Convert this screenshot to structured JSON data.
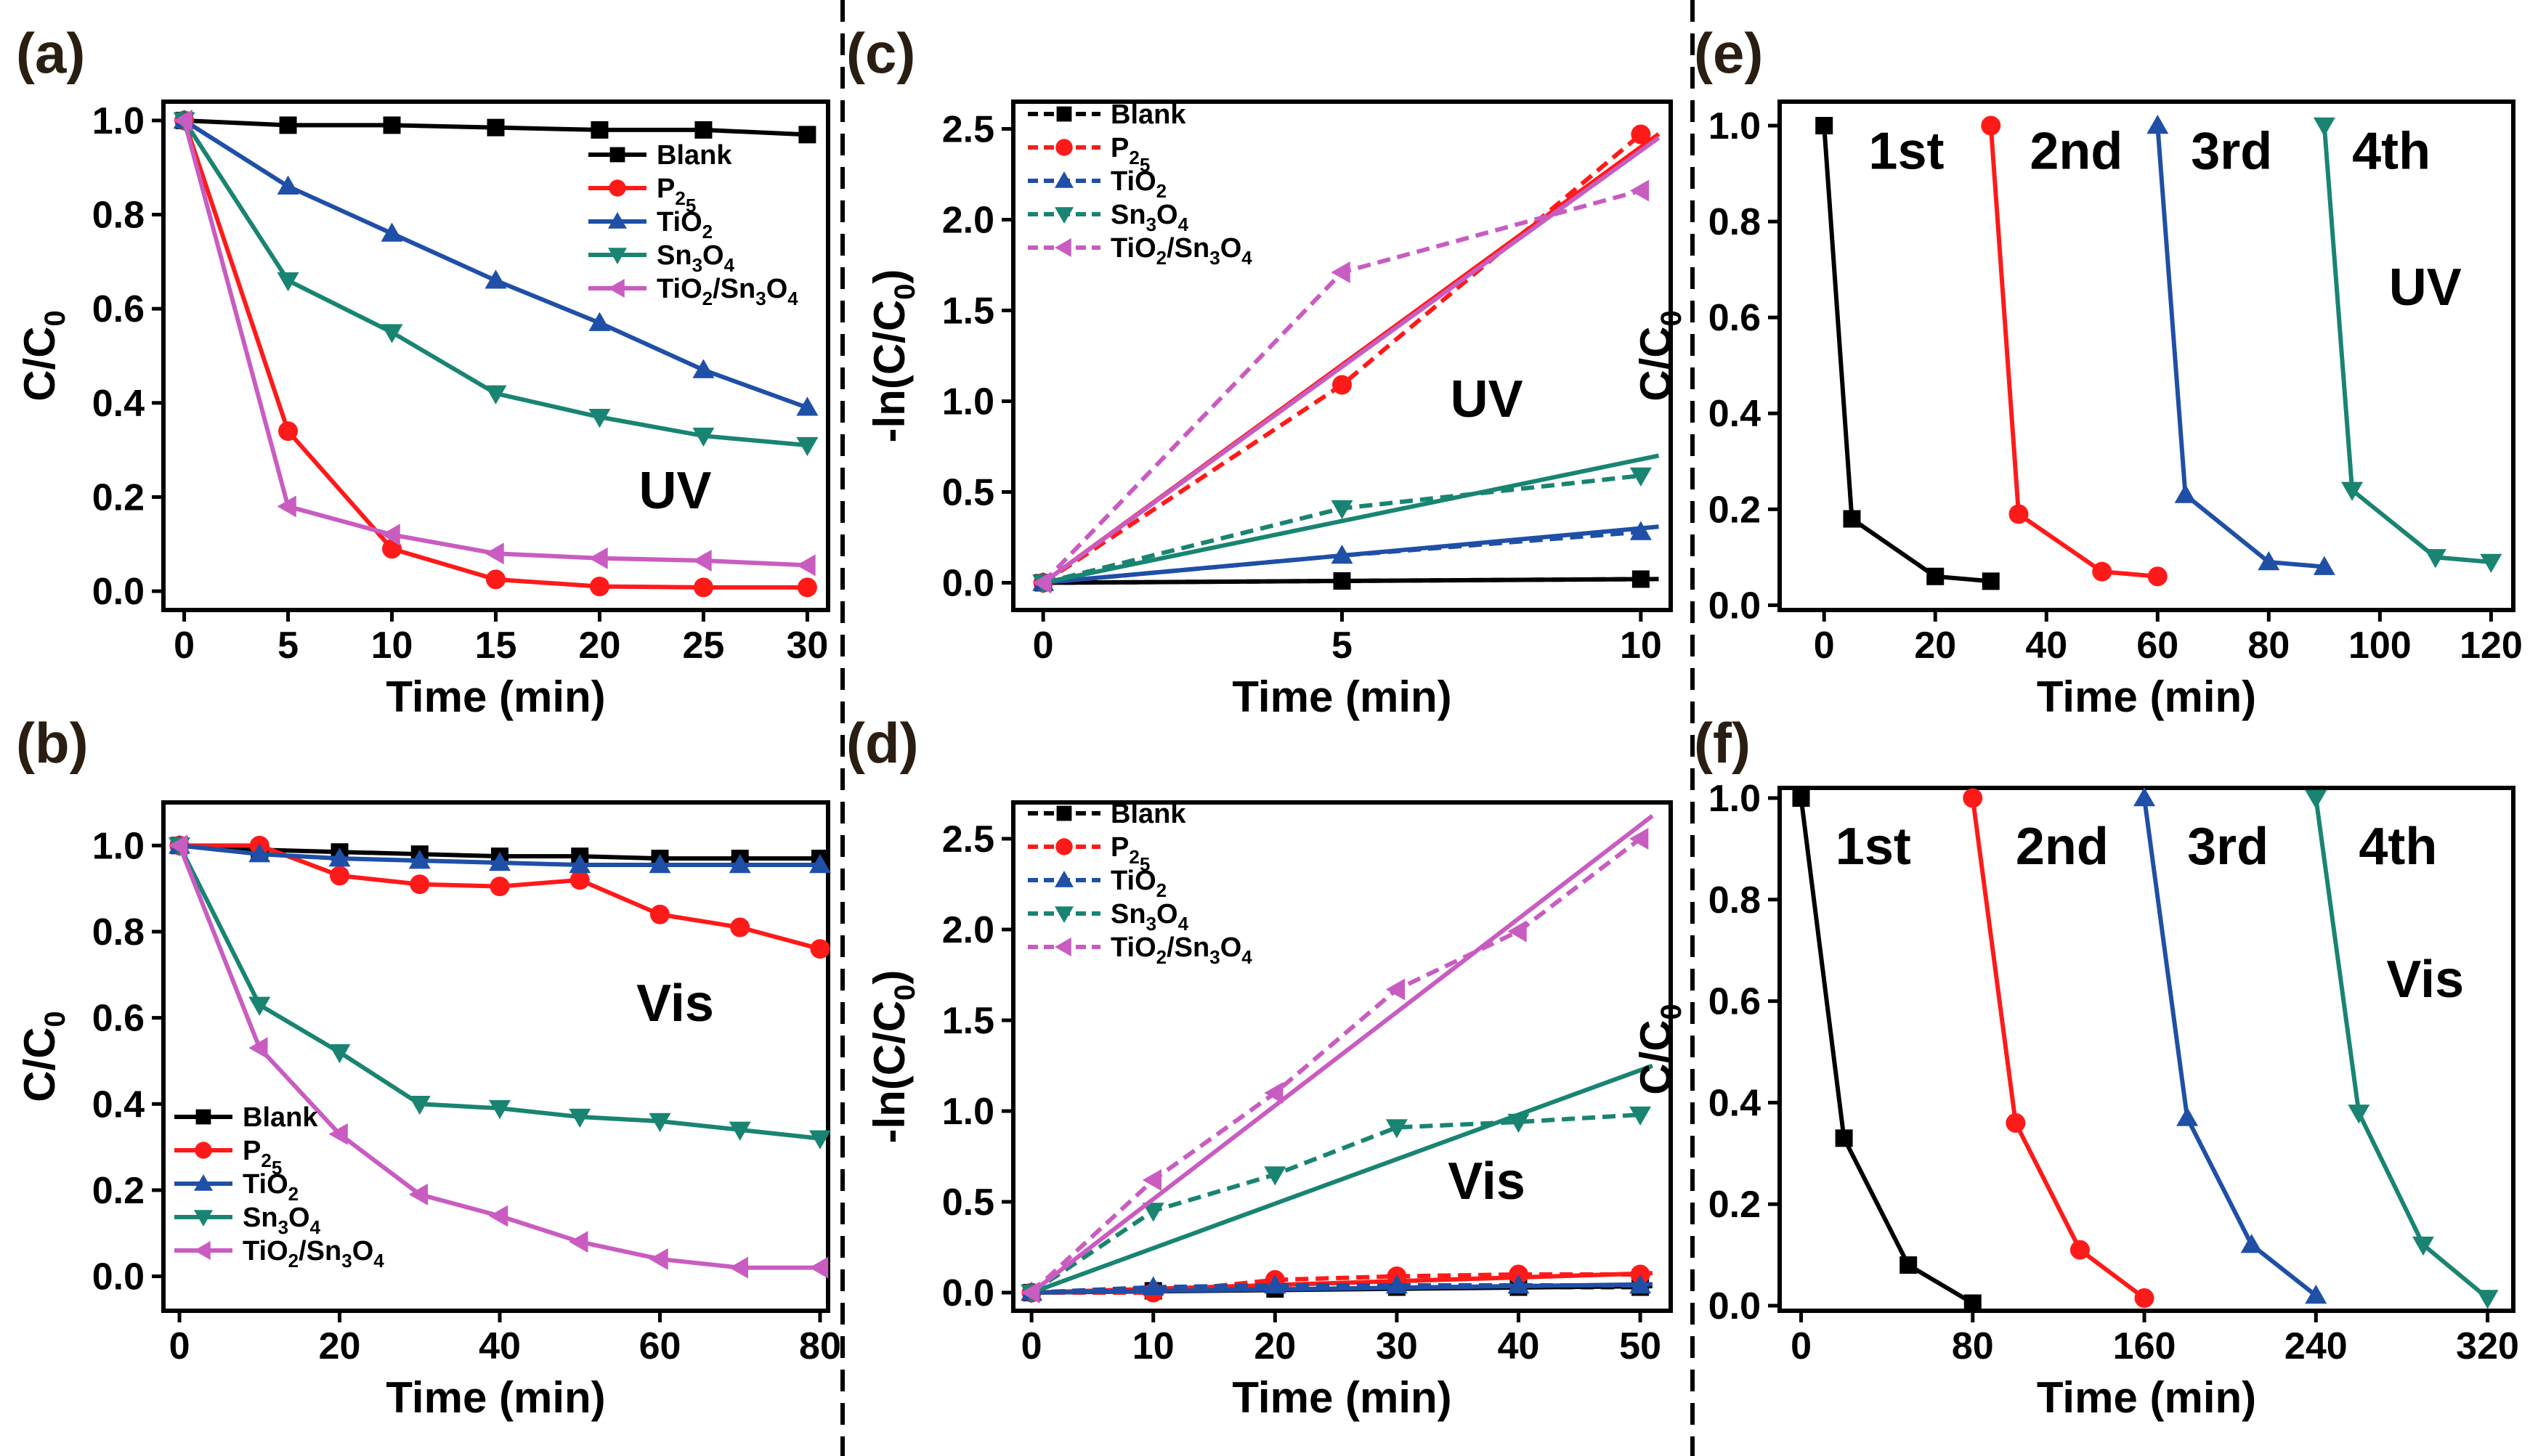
{
  "colors": {
    "Blank": "#000000",
    "P25": "#ff1a1a",
    "TiO2": "#1f4fa6",
    "Sn3O4": "#198472",
    "TiO2/Sn3O4": "#c95cc1"
  },
  "chart_data": [
    {
      "id": "a",
      "type": "line",
      "panel_label": "(a)",
      "annotation": "UV",
      "xlabel": "Time (min)",
      "ylabel": "C/C0",
      "xlim": [
        -1,
        31
      ],
      "ylim": [
        -0.04,
        1.04
      ],
      "xticks": [
        0,
        5,
        10,
        15,
        20,
        25,
        30
      ],
      "xtick_labels": [
        "0",
        "5",
        "10",
        "15",
        "20",
        "25",
        "30"
      ],
      "yticks": [
        0,
        0.2,
        0.4,
        0.6,
        0.8,
        1.0
      ],
      "ytick_labels": [
        "0.0",
        "0.2",
        "0.4",
        "0.6",
        "0.8",
        "1.0"
      ],
      "legend": {
        "position": "right-upper"
      },
      "series": [
        {
          "name": "Blank",
          "marker": "square",
          "dashed": false,
          "x": [
            0,
            5,
            10,
            15,
            20,
            25,
            30
          ],
          "y": [
            1.0,
            0.99,
            0.99,
            0.985,
            0.98,
            0.98,
            0.97
          ]
        },
        {
          "name": "P25",
          "marker": "circle",
          "dashed": false,
          "x": [
            0,
            5,
            10,
            15,
            20,
            25,
            30
          ],
          "y": [
            1.0,
            0.34,
            0.09,
            0.025,
            0.01,
            0.008,
            0.008
          ]
        },
        {
          "name": "TiO2",
          "marker": "triangle-up",
          "dashed": false,
          "x": [
            0,
            5,
            10,
            15,
            20,
            25,
            30
          ],
          "y": [
            1.0,
            0.86,
            0.76,
            0.66,
            0.57,
            0.47,
            0.39
          ]
        },
        {
          "name": "Sn3O4",
          "marker": "triangle-down",
          "dashed": false,
          "x": [
            0,
            5,
            10,
            15,
            20,
            25,
            30
          ],
          "y": [
            1.0,
            0.66,
            0.55,
            0.42,
            0.37,
            0.33,
            0.31
          ]
        },
        {
          "name": "TiO2/Sn3O4",
          "marker": "triangle-left",
          "dashed": false,
          "x": [
            0,
            5,
            10,
            15,
            20,
            25,
            30
          ],
          "y": [
            1.0,
            0.18,
            0.12,
            0.08,
            0.07,
            0.065,
            0.055
          ]
        }
      ]
    },
    {
      "id": "b",
      "type": "line",
      "panel_label": "(b)",
      "annotation": "Vis",
      "xlabel": "Time (min)",
      "ylabel": "C/C0",
      "xlim": [
        -2,
        81
      ],
      "ylim": [
        -0.08,
        1.1
      ],
      "xticks": [
        0,
        20,
        40,
        60,
        80
      ],
      "xtick_labels": [
        "0",
        "20",
        "40",
        "60",
        "80"
      ],
      "yticks": [
        0,
        0.2,
        0.4,
        0.6,
        0.8,
        1.0
      ],
      "ytick_labels": [
        "0.0",
        "0.2",
        "0.4",
        "0.6",
        "0.8",
        "1.0"
      ],
      "legend": {
        "position": "lower-left"
      },
      "series": [
        {
          "name": "Blank",
          "marker": "square",
          "dashed": false,
          "x": [
            0,
            10,
            20,
            30,
            40,
            50,
            60,
            70,
            80
          ],
          "y": [
            1.0,
            0.99,
            0.985,
            0.98,
            0.975,
            0.975,
            0.97,
            0.97,
            0.97
          ]
        },
        {
          "name": "P25",
          "marker": "circle",
          "dashed": false,
          "x": [
            0,
            10,
            20,
            30,
            40,
            50,
            60,
            70,
            80
          ],
          "y": [
            1.0,
            1.0,
            0.93,
            0.91,
            0.905,
            0.92,
            0.84,
            0.81,
            0.76
          ]
        },
        {
          "name": "TiO2",
          "marker": "triangle-up",
          "dashed": false,
          "x": [
            0,
            10,
            20,
            30,
            40,
            50,
            60,
            70,
            80
          ],
          "y": [
            1.0,
            0.98,
            0.97,
            0.965,
            0.96,
            0.955,
            0.955,
            0.955,
            0.955
          ]
        },
        {
          "name": "Sn3O4",
          "marker": "triangle-down",
          "dashed": false,
          "x": [
            0,
            10,
            20,
            30,
            40,
            50,
            60,
            70,
            80
          ],
          "y": [
            1.0,
            0.63,
            0.52,
            0.4,
            0.39,
            0.37,
            0.36,
            0.34,
            0.32
          ]
        },
        {
          "name": "TiO2/Sn3O4",
          "marker": "triangle-left",
          "dashed": false,
          "x": [
            0,
            10,
            20,
            30,
            40,
            50,
            60,
            70,
            80
          ],
          "y": [
            1.0,
            0.53,
            0.33,
            0.19,
            0.14,
            0.08,
            0.04,
            0.02,
            0.02
          ]
        }
      ]
    },
    {
      "id": "c",
      "type": "line",
      "panel_label": "(c)",
      "annotation": "UV",
      "xlabel": "Time (min)",
      "ylabel": "-ln(C/C0)",
      "xlim": [
        -0.5,
        10.5
      ],
      "ylim": [
        -0.15,
        2.65
      ],
      "xticks": [
        0,
        5,
        10
      ],
      "xtick_labels": [
        "0",
        "5",
        "10"
      ],
      "yticks": [
        0,
        0.5,
        1.0,
        1.5,
        2.0,
        2.5
      ],
      "ytick_labels": [
        "0.0",
        "0.5",
        "1.0",
        "1.5",
        "2.0",
        "2.5"
      ],
      "legend": {
        "position": "top-left"
      },
      "series": [
        {
          "name": "Blank",
          "marker": "square",
          "dashed": true,
          "x": [
            0,
            5,
            10
          ],
          "y": [
            0.0,
            0.01,
            0.02
          ],
          "fit": {
            "x0": 0,
            "x1": 10.3,
            "slope": 0.002
          }
        },
        {
          "name": "P25",
          "marker": "circle",
          "dashed": true,
          "x": [
            0,
            5,
            10
          ],
          "y": [
            0.0,
            1.09,
            2.47
          ],
          "fit": {
            "x0": 0,
            "x1": 10.3,
            "slope": 0.24
          }
        },
        {
          "name": "TiO2",
          "marker": "triangle-up",
          "dashed": true,
          "x": [
            0,
            5,
            10
          ],
          "y": [
            0.0,
            0.15,
            0.28
          ],
          "fit": {
            "x0": 0,
            "x1": 10.3,
            "slope": 0.03
          }
        },
        {
          "name": "Sn3O4",
          "marker": "triangle-down",
          "dashed": true,
          "x": [
            0,
            5,
            10
          ],
          "y": [
            0.0,
            0.41,
            0.59
          ],
          "fit": {
            "x0": 0,
            "x1": 10.3,
            "slope": 0.068
          }
        },
        {
          "name": "TiO2/Sn3O4",
          "marker": "triangle-left",
          "dashed": true,
          "x": [
            0,
            5,
            10
          ],
          "y": [
            0.0,
            1.71,
            2.16
          ],
          "fit": {
            "x0": 0,
            "x1": 10.3,
            "slope": 0.238
          }
        }
      ]
    },
    {
      "id": "d",
      "type": "line",
      "panel_label": "(d)",
      "annotation": "Vis",
      "xlabel": "Time (min)",
      "ylabel": "-ln(C/C0)",
      "xlim": [
        -1.5,
        52.5
      ],
      "ylim": [
        -0.1,
        2.7
      ],
      "xticks": [
        0,
        10,
        20,
        30,
        40,
        50
      ],
      "xtick_labels": [
        "0",
        "10",
        "20",
        "30",
        "40",
        "50"
      ],
      "yticks": [
        0,
        0.5,
        1.0,
        1.5,
        2.0,
        2.5
      ],
      "ytick_labels": [
        "0.0",
        "0.5",
        "1.0",
        "1.5",
        "2.0",
        "2.5"
      ],
      "legend": {
        "position": "top-left"
      },
      "series": [
        {
          "name": "Blank",
          "marker": "square",
          "dashed": true,
          "x": [
            0,
            10,
            20,
            30,
            40,
            50
          ],
          "y": [
            0.0,
            0.01,
            0.02,
            0.03,
            0.03,
            0.03
          ],
          "fit": {
            "x0": 0,
            "x1": 51,
            "slope": 0.0007
          }
        },
        {
          "name": "P25",
          "marker": "circle",
          "dashed": true,
          "x": [
            0,
            10,
            20,
            30,
            40,
            50
          ],
          "y": [
            0.0,
            0.0,
            0.07,
            0.09,
            0.1,
            0.1
          ],
          "fit": {
            "x0": 0,
            "x1": 51,
            "slope": 0.0021
          }
        },
        {
          "name": "TiO2",
          "marker": "triangle-up",
          "dashed": true,
          "x": [
            0,
            10,
            20,
            30,
            40,
            50
          ],
          "y": [
            0.0,
            0.03,
            0.04,
            0.04,
            0.04,
            0.04
          ],
          "fit": {
            "x0": 0,
            "x1": 51,
            "slope": 0.0009
          }
        },
        {
          "name": "Sn3O4",
          "marker": "triangle-down",
          "dashed": true,
          "x": [
            0,
            10,
            20,
            30,
            40,
            50
          ],
          "y": [
            0.0,
            0.45,
            0.65,
            0.91,
            0.94,
            0.98
          ],
          "fit": {
            "x0": 0,
            "x1": 51,
            "slope": 0.0245
          }
        },
        {
          "name": "TiO2/Sn3O4",
          "marker": "triangle-left",
          "dashed": true,
          "x": [
            0,
            10,
            20,
            30,
            40,
            50
          ],
          "y": [
            0.0,
            0.62,
            1.1,
            1.67,
            1.99,
            2.5
          ],
          "fit": {
            "x0": 0,
            "x1": 51,
            "slope": 0.0515
          }
        }
      ]
    },
    {
      "id": "e",
      "type": "line",
      "panel_label": "(e)",
      "annotation": "UV",
      "xlabel": "Time (min)",
      "ylabel": "C/C0",
      "xlim": [
        -8,
        124
      ],
      "ylim": [
        -0.01,
        1.05
      ],
      "xticks": [
        0,
        20,
        40,
        60,
        80,
        100,
        120
      ],
      "xtick_labels": [
        "0",
        "20",
        "40",
        "60",
        "80",
        "100",
        "120"
      ],
      "yticks": [
        0,
        0.2,
        0.4,
        0.6,
        0.8,
        1.0
      ],
      "ytick_labels": [
        "0.0",
        "0.2",
        "0.4",
        "0.6",
        "0.8",
        "1.0"
      ],
      "cycle_labels": [
        {
          "text": "1st",
          "x": 8,
          "y": 0.91
        },
        {
          "text": "2nd",
          "x": 37,
          "y": 0.91
        },
        {
          "text": "3rd",
          "x": 66,
          "y": 0.91
        },
        {
          "text": "4th",
          "x": 95,
          "y": 0.91
        }
      ],
      "series": [
        {
          "name": "1st",
          "color_key": "Blank",
          "marker": "square",
          "x": [
            0,
            5,
            20,
            30
          ],
          "y": [
            1.0,
            0.18,
            0.06,
            0.05
          ]
        },
        {
          "name": "2nd",
          "color_key": "P25",
          "marker": "circle",
          "x": [
            30,
            35,
            50,
            60
          ],
          "y": [
            1.0,
            0.19,
            0.07,
            0.06
          ]
        },
        {
          "name": "3rd",
          "color_key": "TiO2",
          "marker": "triangle-up",
          "x": [
            60,
            65,
            80,
            90
          ],
          "y": [
            1.0,
            0.23,
            0.09,
            0.08
          ]
        },
        {
          "name": "4th",
          "color_key": "Sn3O4",
          "marker": "triangle-down",
          "x": [
            90,
            95,
            110,
            120
          ],
          "y": [
            1.0,
            0.24,
            0.1,
            0.09
          ]
        }
      ]
    },
    {
      "id": "f",
      "type": "line",
      "panel_label": "(f)",
      "annotation": "Vis",
      "xlabel": "Time (min)",
      "ylabel": "C/C0",
      "xlim": [
        -10,
        332
      ],
      "ylim": [
        -0.01,
        1.02
      ],
      "xticks": [
        0,
        80,
        160,
        240,
        320
      ],
      "xtick_labels": [
        "0",
        "80",
        "160",
        "240",
        "320"
      ],
      "yticks": [
        0,
        0.2,
        0.4,
        0.6,
        0.8,
        1.0
      ],
      "ytick_labels": [
        "0.0",
        "0.2",
        "0.4",
        "0.6",
        "0.8",
        "1.0"
      ],
      "cycle_labels": [
        {
          "text": "1st",
          "x": 16,
          "y": 0.87
        },
        {
          "text": "2nd",
          "x": 100,
          "y": 0.87
        },
        {
          "text": "3rd",
          "x": 180,
          "y": 0.87
        },
        {
          "text": "4th",
          "x": 260,
          "y": 0.87
        }
      ],
      "series": [
        {
          "name": "1st",
          "color_key": "Blank",
          "marker": "square",
          "x": [
            0,
            20,
            50,
            80
          ],
          "y": [
            1.0,
            0.33,
            0.08,
            0.005
          ]
        },
        {
          "name": "2nd",
          "color_key": "P25",
          "marker": "circle",
          "x": [
            80,
            100,
            130,
            160
          ],
          "y": [
            1.0,
            0.36,
            0.11,
            0.015
          ]
        },
        {
          "name": "3rd",
          "color_key": "TiO2",
          "marker": "triangle-up",
          "x": [
            160,
            180,
            210,
            240
          ],
          "y": [
            1.0,
            0.37,
            0.12,
            0.02
          ]
        },
        {
          "name": "4th",
          "color_key": "Sn3O4",
          "marker": "triangle-down",
          "x": [
            240,
            260,
            290,
            320
          ],
          "y": [
            1.0,
            0.38,
            0.12,
            0.015
          ]
        }
      ]
    }
  ]
}
